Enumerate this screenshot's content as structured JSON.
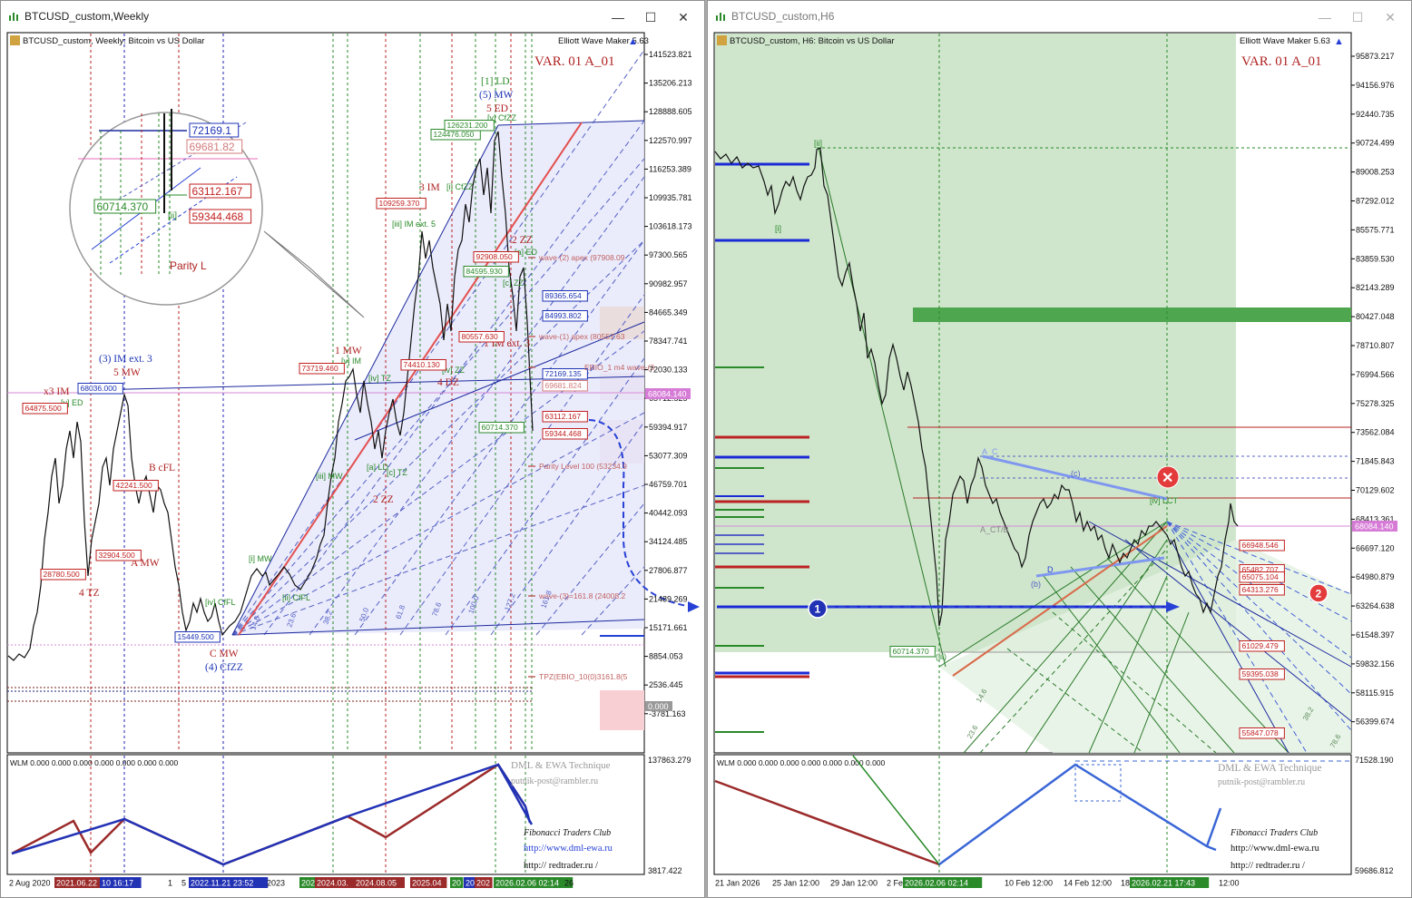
{
  "left": {
    "window_title": "BTCUSD_custom,Weekly",
    "chart_info": "BTCUSD_custom, Weekly:  Bitcoin vs US Dollar",
    "ewm_label": "Elliott Wave Maker 5.63",
    "variant": "VAR. 01 A_01",
    "price_axis": [
      "141523.821",
      "135206.213",
      "128888.605",
      "122570.997",
      "116253.389",
      "109935.781",
      "103618.173",
      "97300.565",
      "90982.957",
      "84665.349",
      "78347.741",
      "72030.133",
      "65712.525",
      "59394.917",
      "53077.309",
      "46759.701",
      "40442.093",
      "34124.485",
      "27806.877",
      "21489.269",
      "15171.661",
      "8854.053",
      "2536.445",
      "-3781.163"
    ],
    "current_price": "68084.140",
    "zero_label": "0.000",
    "wlm_label": "WLM 0.000 0.000 0.000 0.000 0.000 0.000 0.000",
    "wlm_axis_top": "137863.279",
    "wlm_axis_bottom": "3817.422",
    "time_axis": [
      "2 Aug 2020",
      "2021.06.22 16:55",
      "10 16:17",
      "1",
      "5",
      "2022.11.21 23:52",
      "2023",
      "202",
      "2024.03.",
      "2024.08.05",
      "2025.04",
      "20",
      "20",
      "202",
      "2026.02.06 02:14",
      "26"
    ],
    "credits": {
      "dml": "DML & EWA Technique",
      "email": "putnik-post@rambler.ru",
      "fib": "Fibonacci     Traders     Club",
      "url1": "http://www.dml-ewa.ru",
      "url2": "http:// redtrader.ru /"
    },
    "price_boxes": [
      {
        "text": "72169.135",
        "color": "#1c33b5"
      },
      {
        "text": "69681.824",
        "color": "#d47b7b"
      },
      {
        "text": "63112.167",
        "color": "#c21f1f"
      },
      {
        "text": "59344.468",
        "color": "#c21f1f"
      },
      {
        "text": "89365.654",
        "color": "#1c33b5"
      },
      {
        "text": "84993.802",
        "color": "#1c33b5"
      },
      {
        "text": "60714.370",
        "color": "#2a8a2a"
      },
      {
        "text": "64875.500",
        "color": "#c21f1f"
      },
      {
        "text": "68036.000",
        "color": "#1c33b5"
      },
      {
        "text": "42241.500",
        "color": "#c21f1f"
      },
      {
        "text": "32904.500",
        "color": "#c21f1f"
      },
      {
        "text": "28780.500",
        "color": "#c21f1f"
      },
      {
        "text": "15449.500",
        "color": "#1c33b5"
      },
      {
        "text": "73719.460",
        "color": "#c21f1f"
      },
      {
        "text": "74410.130",
        "color": "#c21f1f"
      },
      {
        "text": "109259.370",
        "color": "#c21f1f"
      },
      {
        "text": "124476.050",
        "color": "#2a8a2a"
      },
      {
        "text": "126231.200",
        "color": "#2a8a2a"
      },
      {
        "text": "92908.050",
        "color": "#c21f1f"
      },
      {
        "text": "84595.930",
        "color": "#2a8a2a"
      },
      {
        "text": "80557.630",
        "color": "#c21f1f"
      }
    ],
    "zoom_boxes": [
      {
        "text": "72169.1",
        "color": "#1c33b5"
      },
      {
        "text": "69681.82",
        "color": "#d47b7b"
      },
      {
        "text": "63112.167",
        "color": "#c21f1f"
      },
      {
        "text": "60714.370",
        "color": "#2a8a2a"
      },
      {
        "text": "59344.468",
        "color": "#c21f1f"
      }
    ],
    "zoom_text": "Parity L",
    "wave_labels": [
      {
        "text": "[1] LD",
        "color": "#2a8a2a"
      },
      {
        "text": "(5) MW",
        "color": "#1c33b5"
      },
      {
        "text": "5 ED",
        "color": "#b02222"
      },
      {
        "text": "3 IM",
        "color": "#b02222"
      },
      {
        "text": "1 MW",
        "color": "#b02222"
      },
      {
        "text": "(3) IM ext. 3",
        "color": "#1c33b5"
      },
      {
        "text": "5 MW",
        "color": "#b02222"
      },
      {
        "text": "x3 IM",
        "color": "#b02222"
      },
      {
        "text": "B cFL",
        "color": "#b02222"
      },
      {
        "text": "A MW",
        "color": "#b02222"
      },
      {
        "text": "4 TZ",
        "color": "#b02222"
      },
      {
        "text": "C MW",
        "color": "#b02222"
      },
      {
        "text": "(4) CfZZ",
        "color": "#1c33b5"
      },
      {
        "text": "2 ZZ",
        "color": "#b02222"
      },
      {
        "text": "4 DZ",
        "color": "#b02222"
      },
      {
        "text": "2 ZZ",
        "color": "#b02222"
      },
      {
        "text": "1 IM ext. 3",
        "color": "#b02222"
      }
    ],
    "small_labels": [
      {
        "text": "[iii] IM ext. 5",
        "color": "#2a8a2a"
      },
      {
        "text": "[i] CfZZ",
        "color": "#2a8a2a"
      },
      {
        "text": "[iii] MW",
        "color": "#2a8a2a"
      },
      {
        "text": "[i] MW",
        "color": "#2a8a2a"
      },
      {
        "text": "[ii] CfFL",
        "color": "#2a8a2a"
      },
      {
        "text": "[iv] CfFL",
        "color": "#2a8a2a"
      },
      {
        "text": "[v] ED",
        "color": "#2a8a2a"
      },
      {
        "text": "[iv] TZ",
        "color": "#2a8a2a"
      },
      {
        "text": "[v] IM",
        "color": "#2a8a2a"
      },
      {
        "text": "[a] LD",
        "color": "#2a8a2a"
      },
      {
        "text": "[c] TZ",
        "color": "#2a8a2a"
      },
      {
        "text": "[iv] ZZ",
        "color": "#2a8a2a"
      },
      {
        "text": "[v] CfZZ",
        "color": "#2a8a2a"
      },
      {
        "text": "[c] ZZ",
        "color": "#2a8a2a"
      },
      {
        "text": "[a] ED",
        "color": "#2a8a2a"
      }
    ],
    "level_texts": [
      "wave-(2) apex (97908.09",
      "wave-(1) apex (80557.63",
      "ERIO_1 m4 wave-(3",
      "Parity Level 100 (53234.9",
      "wave-(3)=161.8 (24008.2",
      "TPZ(EBIO_10(0)3161.8(5"
    ],
    "fib_labels": [
      "14.6",
      "23.6",
      "38.2",
      "50.0",
      "61.8",
      "78.6",
      "100.0",
      "127.2",
      "161.8"
    ]
  },
  "right": {
    "window_title": "BTCUSD_custom,H6",
    "chart_info": "BTCUSD_custom, H6:  Bitcoin vs US Dollar",
    "ewm_label": "Elliott Wave Maker 5.63",
    "variant": "VAR. 01 A_01",
    "price_axis": [
      "95873.217",
      "94156.976",
      "92440.735",
      "90724.499",
      "89008.253",
      "87292.012",
      "85575.771",
      "83859.530",
      "82143.289",
      "80427.048",
      "78710.807",
      "76994.566",
      "75278.325",
      "73562.084",
      "71845.843",
      "70129.602",
      "68413.361",
      "66697.120",
      "64980.879",
      "63264.638",
      "61548.397",
      "59832.156",
      "58115.915",
      "56399.674"
    ],
    "current_price": "68084.140",
    "wlm_label": "WLM 0.000 0.000 0.000 0.000 0.000 0.000 0.000",
    "wlm_axis_top": "71528.190",
    "wlm_axis_bottom": "59686.812",
    "time_axis": [
      "21 Jan 2026",
      "25 Jan 12:00",
      "29 Jan 12:00",
      "2 Fe",
      "2026.02.06 02:14",
      "10 Feb 12:00",
      "14 Feb 12:00",
      "18",
      "2026.02.21 17:43",
      "12:00"
    ],
    "credits": {
      "dml": "DML & EWA Technique",
      "email": "putnik-post@rambler.ru",
      "fib": "Fibonacci     Traders     Club",
      "url1": "http://www.dml-ewa.ru",
      "url2": "http:// redtrader.ru /"
    },
    "price_boxes": [
      {
        "text": "66948.546",
        "color": "#c21f1f"
      },
      {
        "text": "65482.707",
        "color": "#c21f1f"
      },
      {
        "text": "65075.104",
        "color": "#c21f1f"
      },
      {
        "text": "64313.276",
        "color": "#c21f1f"
      },
      {
        "text": "61029.479",
        "color": "#c21f1f"
      },
      {
        "text": "59395.038",
        "color": "#c21f1f"
      },
      {
        "text": "55847.078",
        "color": "#c21f1f"
      },
      {
        "text": "60714.370",
        "color": "#2a8a2a"
      }
    ],
    "wave_labels": [
      "[ii]",
      "[i]",
      "A_C",
      "(c)",
      "[iv] LCT",
      "(b)",
      "D",
      "A_CT/B",
      "(iii)"
    ],
    "markers": [
      "1",
      "2"
    ],
    "fib_labels": [
      "14.6",
      "23.6",
      "38.2",
      "78.6"
    ]
  }
}
